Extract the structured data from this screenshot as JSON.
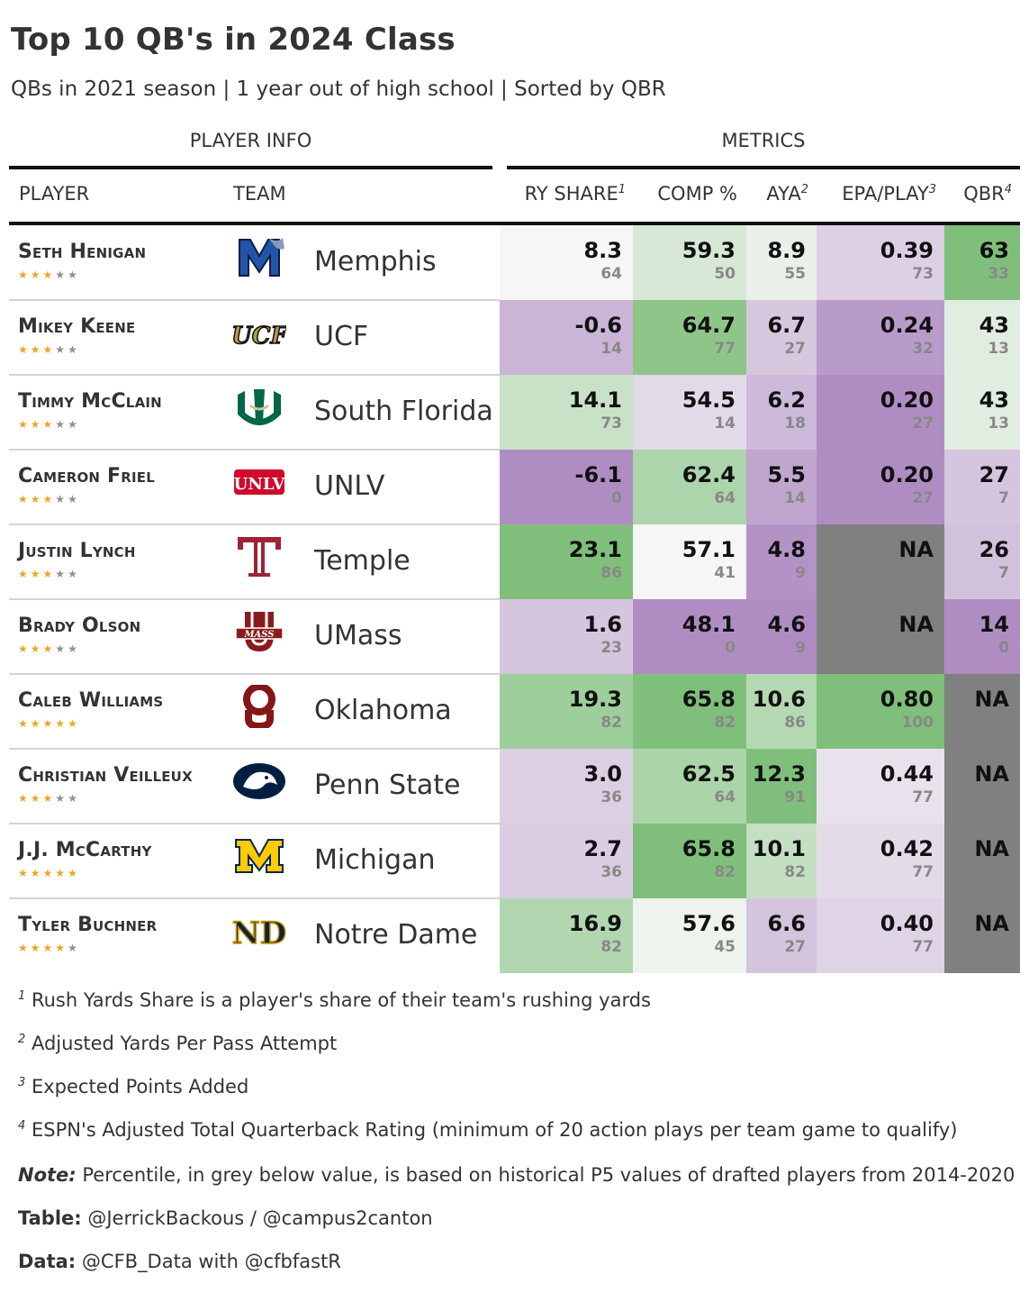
{
  "title": "Top 10 QB's in 2024 Class",
  "subtitle": "QBs in 2021 season | 1 year out of high school | Sorted by QBR",
  "spanners": {
    "player_info": "PLAYER INFO",
    "metrics": "METRICS"
  },
  "columns": {
    "player": "PLAYER",
    "team": "TEAM",
    "ry_share": "RY SHARE",
    "comp": "COMP %",
    "aya": "AYA",
    "epa": "EPA/PLAY",
    "qbr": "QBR",
    "mark1": "1",
    "mark2": "2",
    "mark3": "3",
    "mark4": "4"
  },
  "colors": {
    "green": "#7fbf7b",
    "purple": "#af8dc3",
    "neutral": "#f7f7f7",
    "na": "#808080",
    "star_on": "#f0a422",
    "star_off": "#909090"
  },
  "chart_data": {
    "type": "table",
    "title": "Top 10 QB's in 2024 Class",
    "metrics": [
      "ry_share",
      "comp",
      "aya",
      "epa",
      "qbr"
    ],
    "rows": [
      {
        "player": "Seth Henigan",
        "stars": 3,
        "team": "Memphis",
        "logo": "memphis-logo",
        "ry_share": "8.3",
        "ry_share_pct": 64,
        "comp": "59.3",
        "comp_pct": 50,
        "aya": "8.9",
        "aya_pct": 55,
        "epa": "0.39",
        "epa_pct": 73,
        "qbr": "63",
        "qbr_pct": 33
      },
      {
        "player": "Mikey Keene",
        "stars": 3,
        "team": "UCF",
        "logo": "ucf-logo",
        "ry_share": "-0.6",
        "ry_share_pct": 14,
        "comp": "64.7",
        "comp_pct": 77,
        "aya": "6.7",
        "aya_pct": 27,
        "epa": "0.24",
        "epa_pct": 32,
        "qbr": "43",
        "qbr_pct": 13
      },
      {
        "player": "Timmy McClain",
        "stars": 3,
        "team": "South Florida",
        "logo": "usf-logo",
        "ry_share": "14.1",
        "ry_share_pct": 73,
        "comp": "54.5",
        "comp_pct": 14,
        "aya": "6.2",
        "aya_pct": 18,
        "epa": "0.20",
        "epa_pct": 27,
        "qbr": "43",
        "qbr_pct": 13
      },
      {
        "player": "Cameron Friel",
        "stars": 3,
        "team": "UNLV",
        "logo": "unlv-logo",
        "ry_share": "-6.1",
        "ry_share_pct": 0,
        "comp": "62.4",
        "comp_pct": 64,
        "aya": "5.5",
        "aya_pct": 14,
        "epa": "0.20",
        "epa_pct": 27,
        "qbr": "27",
        "qbr_pct": 7
      },
      {
        "player": "Justin Lynch",
        "stars": 3,
        "team": "Temple",
        "logo": "temple-logo",
        "ry_share": "23.1",
        "ry_share_pct": 86,
        "comp": "57.1",
        "comp_pct": 41,
        "aya": "4.8",
        "aya_pct": 9,
        "epa": "NA",
        "epa_pct": null,
        "qbr": "26",
        "qbr_pct": 7
      },
      {
        "player": "Brady Olson",
        "stars": 3,
        "team": "UMass",
        "logo": "umass-logo",
        "ry_share": "1.6",
        "ry_share_pct": 23,
        "comp": "48.1",
        "comp_pct": 0,
        "aya": "4.6",
        "aya_pct": 9,
        "epa": "NA",
        "epa_pct": null,
        "qbr": "14",
        "qbr_pct": 0
      },
      {
        "player": "Caleb Williams",
        "stars": 5,
        "team": "Oklahoma",
        "logo": "oklahoma-logo",
        "ry_share": "19.3",
        "ry_share_pct": 82,
        "comp": "65.8",
        "comp_pct": 82,
        "aya": "10.6",
        "aya_pct": 86,
        "epa": "0.80",
        "epa_pct": 100,
        "qbr": "NA",
        "qbr_pct": null
      },
      {
        "player": "Christian Veilleux",
        "stars": 3,
        "team": "Penn State",
        "logo": "pennstate-logo",
        "ry_share": "3.0",
        "ry_share_pct": 36,
        "comp": "62.5",
        "comp_pct": 64,
        "aya": "12.3",
        "aya_pct": 91,
        "epa": "0.44",
        "epa_pct": 77,
        "qbr": "NA",
        "qbr_pct": null
      },
      {
        "player": "J.J. McCarthy",
        "stars": 5,
        "team": "Michigan",
        "logo": "michigan-logo",
        "ry_share": "2.7",
        "ry_share_pct": 36,
        "comp": "65.8",
        "comp_pct": 82,
        "aya": "10.1",
        "aya_pct": 82,
        "epa": "0.42",
        "epa_pct": 77,
        "qbr": "NA",
        "qbr_pct": null
      },
      {
        "player": "Tyler Buchner",
        "stars": 4,
        "team": "Notre Dame",
        "logo": "notredame-logo",
        "ry_share": "16.9",
        "ry_share_pct": 82,
        "comp": "57.6",
        "comp_pct": 45,
        "aya": "6.6",
        "aya_pct": 27,
        "epa": "0.40",
        "epa_pct": 77,
        "qbr": "NA",
        "qbr_pct": null
      }
    ]
  },
  "footnotes": {
    "f1_mark": "1",
    "f1_text": "Rush Yards Share is a player's share of their team's rushing yards",
    "f2_mark": "2",
    "f2_text": "Adjusted Yards Per Pass Attempt",
    "f3_mark": "3",
    "f3_text": "Expected Points Added",
    "f4_mark": "4",
    "f4_text": "ESPN's Adjusted Total Quarterback Rating (minimum of 20 action plays per team game to qualify)"
  },
  "source_notes": {
    "note_label": "Note:",
    "note_text": "Percentile, in grey below value, is based on historical P5 values of drafted players from 2014-2020",
    "table_label": "Table:",
    "table_text": "@JerrickBackous / @campus2canton",
    "data_label": "Data:",
    "data_text": "@CFB_Data with @cfbfastR"
  }
}
